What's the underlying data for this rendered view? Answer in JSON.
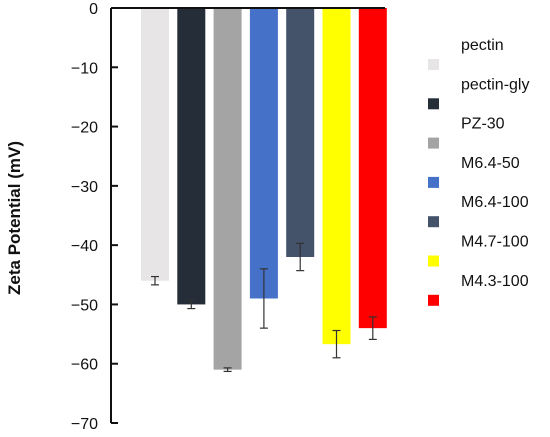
{
  "chart_data": {
    "type": "bar",
    "title": "",
    "xlabel": "",
    "ylabel": "Zeta Potential (mV)",
    "ylim": [
      -70,
      0
    ],
    "yticks": [
      0,
      -10,
      -20,
      -30,
      -40,
      -50,
      -60,
      -70
    ],
    "ytick_labels": [
      "0",
      "−10",
      "−20",
      "−30",
      "−40",
      "−50",
      "−60",
      "−70"
    ],
    "grid": false,
    "legend_position": "right",
    "categories": [
      "pectin",
      "pectin-gly",
      "PZ-30",
      "M6.4-50",
      "M6.4-100",
      "M4.7-100",
      "M4.3-100"
    ],
    "values": [
      -46,
      -50,
      -61,
      -49,
      -42,
      -56.7,
      -54
    ],
    "errors": [
      0.7,
      0.7,
      0.3,
      5,
      2.3,
      2.3,
      1.9
    ],
    "colors": [
      "#e7e5e6",
      "#252d38",
      "#a4a4a4",
      "#4571c8",
      "#44526a",
      "#ffff00",
      "#ff0000"
    ]
  }
}
